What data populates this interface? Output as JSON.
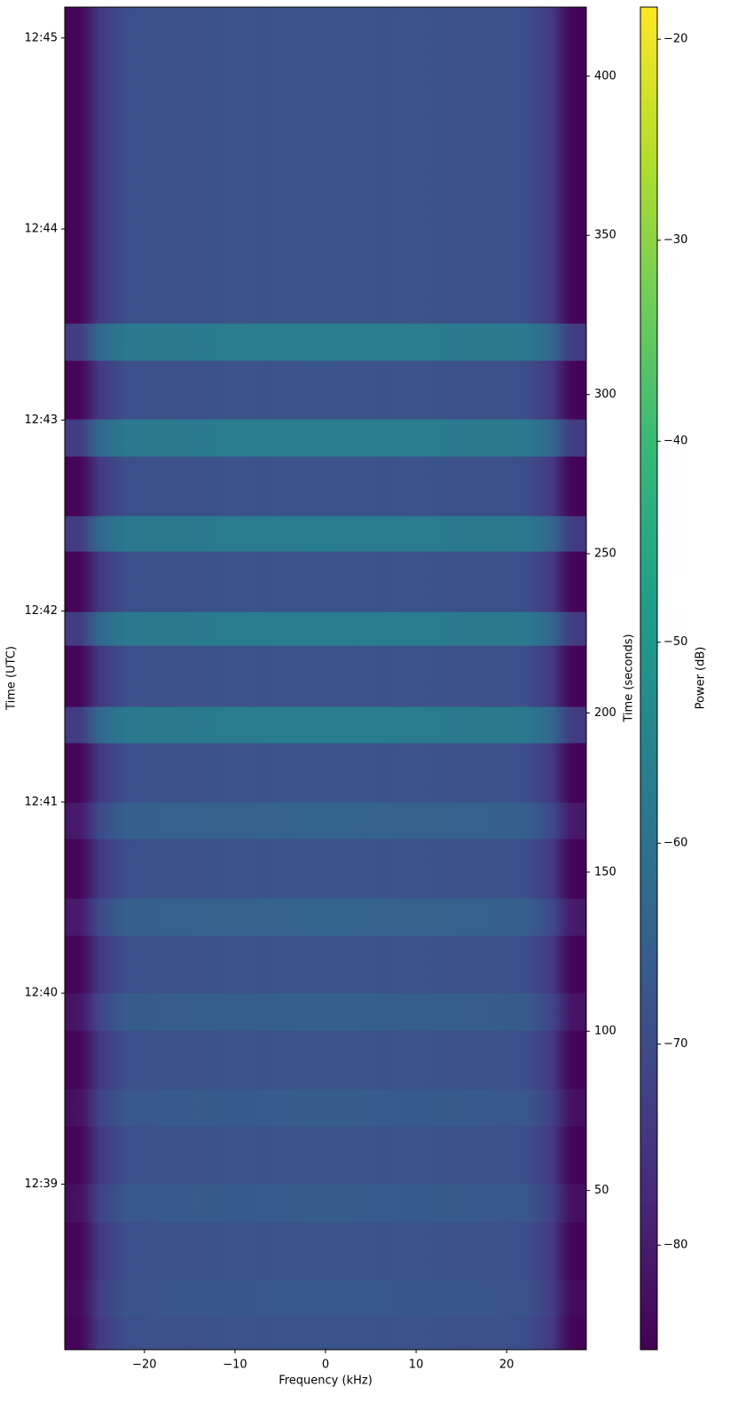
{
  "chart_data": {
    "type": "spectrogram",
    "xlabel": "Frequency (kHz)",
    "ylabel": "Time (UTC)",
    "y2label": "Time (seconds)",
    "colorbar_label": "Power (dB)",
    "colormap": "viridis",
    "xlim": [
      -28.8,
      28.8
    ],
    "xticks": [
      {
        "value": -20,
        "label": "−20"
      },
      {
        "value": -10,
        "label": "−10"
      },
      0,
      10,
      20
    ],
    "ylim": [
      0,
      421.7
    ],
    "yticks": [
      {
        "value": 52,
        "label": "12:39"
      },
      {
        "value": 112,
        "label": "12:40"
      },
      {
        "value": 172,
        "label": "12:41"
      },
      {
        "value": 232,
        "label": "12:42"
      },
      {
        "value": 292,
        "label": "12:43"
      },
      {
        "value": 352,
        "label": "12:44"
      },
      {
        "value": 412,
        "label": "12:45"
      }
    ],
    "y2lim": [
      0,
      421.7
    ],
    "y2ticks": [
      50,
      100,
      150,
      200,
      250,
      300,
      350,
      400
    ],
    "clim": [
      -85.2,
      -18.4
    ],
    "cticks": [
      {
        "value": -80,
        "label": "−80"
      },
      {
        "value": -70,
        "label": "−70"
      },
      {
        "value": -60,
        "label": "−60"
      },
      {
        "value": -50,
        "label": "−50"
      },
      {
        "value": -40,
        "label": "−40"
      },
      {
        "value": -30,
        "label": "−30"
      },
      {
        "value": -20,
        "label": "−20"
      }
    ],
    "profile": {
      "x": [
        -28.8,
        -27,
        -25,
        -22,
        0,
        22,
        25,
        27,
        28.8
      ],
      "values": [
        -85,
        -84,
        -74,
        -69,
        -68,
        -69,
        -74,
        -84,
        -85
      ]
    },
    "bands": [
      {
        "start": 310.6,
        "end": 322.3,
        "power": -57
      },
      {
        "start": 280.5,
        "end": 292.2,
        "power": -57
      },
      {
        "start": 250.7,
        "end": 261.8,
        "power": -57
      },
      {
        "start": 221.1,
        "end": 231.7,
        "power": -57
      },
      {
        "start": 190.5,
        "end": 201.9,
        "power": -57
      },
      {
        "start": 160.4,
        "end": 171.8,
        "power": -64
      },
      {
        "start": 130.0,
        "end": 141.7,
        "power": -64
      },
      {
        "start": 100.2,
        "end": 111.9,
        "power": -65
      },
      {
        "start": 70.1,
        "end": 81.8,
        "power": -66
      },
      {
        "start": 40.0,
        "end": 52.0,
        "power": -66
      },
      {
        "start": 10.2,
        "end": 21.9,
        "power": -67
      }
    ]
  }
}
